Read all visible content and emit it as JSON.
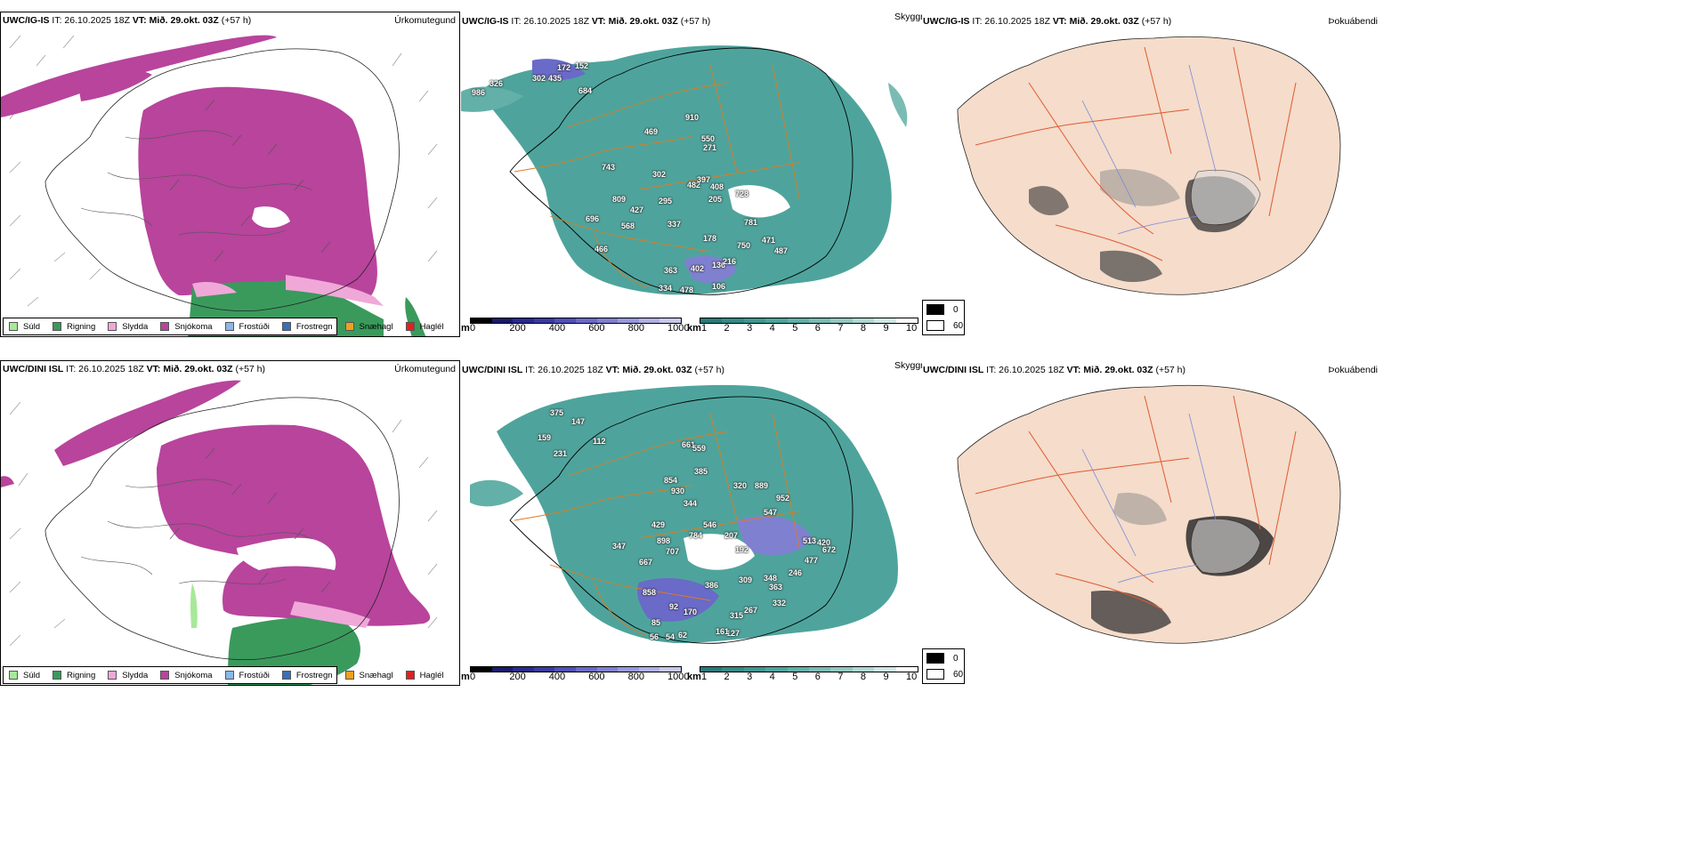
{
  "panels": {
    "top_left": {
      "header_model": "UWC/IG-IS",
      "header_it": "IT: 26.10.2025 18Z",
      "header_vt_label": "VT:",
      "header_vt": "Mið. 29.okt. 03Z",
      "header_step": "(+57 h)",
      "title": "Úrkomutegund"
    },
    "top_mid": {
      "header_model": "UWC/IG-IS",
      "header_it": "IT: 26.10.2025 18Z",
      "header_vt_label": "VT:",
      "header_vt": "Mið. 29.okt. 03Z",
      "header_step": "(+57 h)",
      "title": "Skyggni"
    },
    "top_right": {
      "header_model": "UWC/IG-IS",
      "header_it": "IT: 26.10.2025 18Z",
      "header_vt_label": "VT:",
      "header_vt": "Mið. 29.okt. 03Z",
      "header_step": "(+57 h)",
      "title": "Þokuábendi"
    },
    "bottom_left": {
      "header_model": "UWC/DINI ISL",
      "header_it": "IT: 26.10.2025 18Z",
      "header_vt_label": "VT:",
      "header_vt": "Mið. 29.okt. 03Z",
      "header_step": "(+57 h)",
      "title": "Úrkomutegund"
    },
    "bottom_mid": {
      "header_model": "UWC/DINI ISL",
      "header_it": "IT: 26.10.2025 18Z",
      "header_vt_label": "VT:",
      "header_vt": "Mið. 29.okt. 03Z",
      "header_step": "(+57 h)",
      "title": "Skyggni"
    },
    "bottom_right": {
      "header_model": "UWC/DINI ISL",
      "header_it": "IT: 26.10.2025 18Z",
      "header_vt_label": "VT:",
      "header_vt": "Mið. 29.okt. 03Z",
      "header_step": "(+57 h)",
      "title": "Þokuábendi"
    }
  },
  "precip_legend": [
    {
      "label": "Súld",
      "color": "#a8e89a"
    },
    {
      "label": "Rigning",
      "color": "#3a9a5c"
    },
    {
      "label": "Slydda",
      "color": "#f0a8d8"
    },
    {
      "label": "Snjókoma",
      "color": "#b8449c"
    },
    {
      "label": "Frostúði",
      "color": "#8ab8e8"
    },
    {
      "label": "Frostregn",
      "color": "#3a70b8"
    },
    {
      "label": "Snæhagl",
      "color": "#f0a020"
    },
    {
      "label": "Haglél",
      "color": "#e02020"
    }
  ],
  "visibility_scale": {
    "m_unit": "m",
    "m_ticks": [
      "0",
      "200",
      "400",
      "600",
      "800",
      "1000"
    ],
    "m_colors": [
      "#000000",
      "#1a1a6a",
      "#2a2a8e",
      "#3a3aa0",
      "#5050b8",
      "#6a6ac8",
      "#8080d0",
      "#9898dc",
      "#b0b0e4",
      "#c8c8ec"
    ],
    "km_unit": "km",
    "km_ticks": [
      "1",
      "2",
      "3",
      "4",
      "5",
      "6",
      "7",
      "8",
      "9",
      "10"
    ],
    "km_colors": [
      "#2a7a78",
      "#358a86",
      "#409890",
      "#4ea49c",
      "#62b0a8",
      "#7abcb4",
      "#94c8c0",
      "#b0d8d2",
      "#d0e8e4",
      "#ffffff"
    ]
  },
  "fog_key": [
    {
      "label": "0",
      "color": "#000000"
    },
    {
      "label": "60",
      "color": "#ffffff"
    }
  ],
  "ceiling_labels_top": [
    "986",
    "326",
    "302",
    "435",
    "172",
    "152",
    "684",
    "910",
    "469",
    "550",
    "271",
    "743",
    "302",
    "482",
    "397",
    "408",
    "728",
    "809",
    "427",
    "295",
    "205",
    "696",
    "568",
    "337",
    "781",
    "178",
    "466",
    "750",
    "471",
    "487",
    "363",
    "402",
    "136",
    "216",
    "334",
    "478",
    "106"
  ],
  "ceiling_labels_bottom": [
    "375",
    "147",
    "159",
    "112",
    "231",
    "661",
    "559",
    "385",
    "854",
    "930",
    "320",
    "889",
    "344",
    "952",
    "547",
    "429",
    "546",
    "898",
    "784",
    "207",
    "347",
    "707",
    "192",
    "667",
    "513",
    "420",
    "672",
    "477",
    "246",
    "858",
    "386",
    "309",
    "348",
    "363",
    "170",
    "332",
    "315",
    "267",
    "92",
    "127",
    "85",
    "54",
    "62",
    "56",
    "161"
  ]
}
